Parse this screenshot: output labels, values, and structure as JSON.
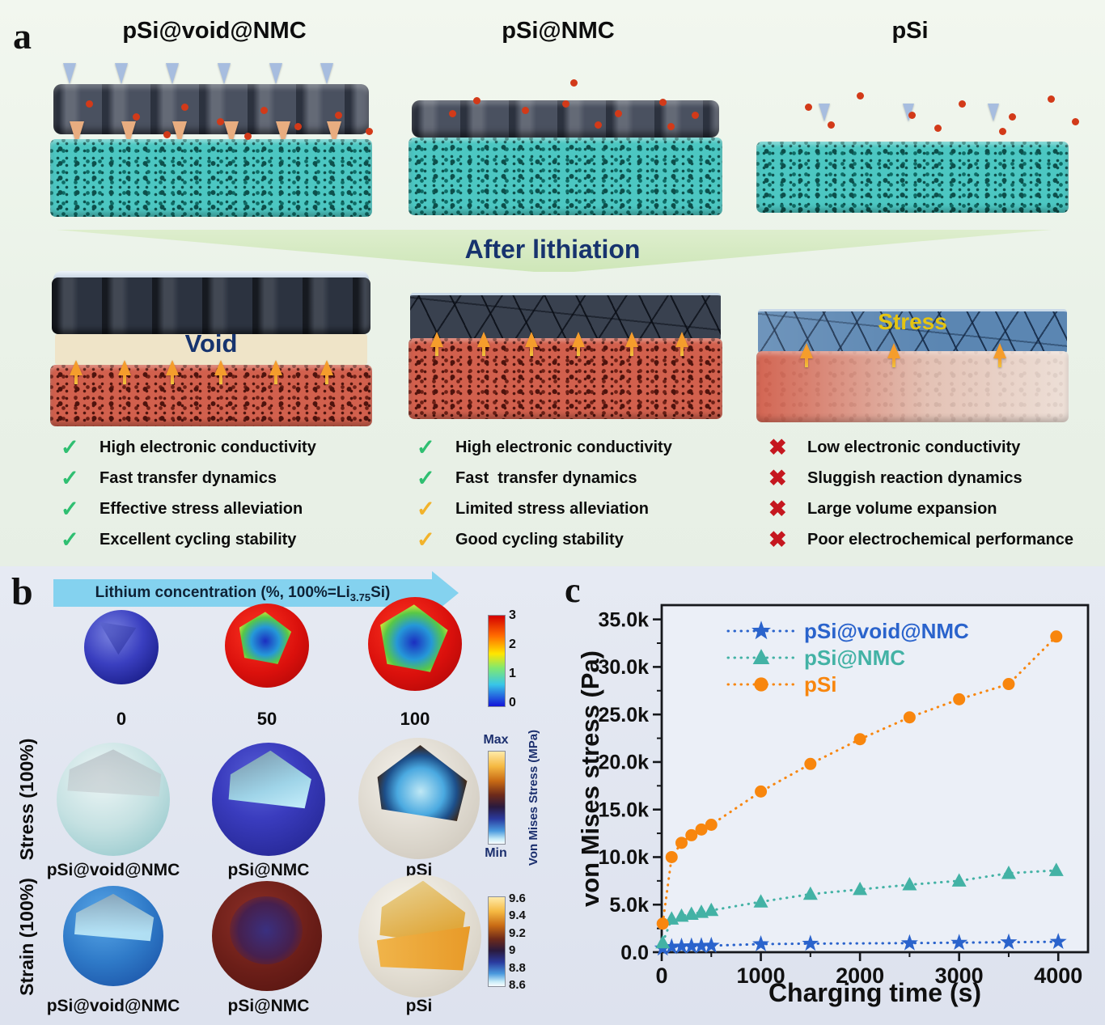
{
  "panel_a": {
    "letter": "a",
    "banner": "After lithiation",
    "void_label": "Void",
    "stress_label": "Stress",
    "icon_glyphs": {
      "check": "✓",
      "check-slash": "✓",
      "cross": "✖"
    },
    "icon_colors": {
      "check": "#2fbf71",
      "check-slash": "#f2b32b",
      "cross": "#c5171f"
    },
    "columns": [
      {
        "title": "pSi@void@NMC",
        "checks": [
          {
            "icon": "check",
            "text": "High electronic conductivity"
          },
          {
            "icon": "check",
            "text": "Fast transfer dynamics"
          },
          {
            "icon": "check",
            "text": "Effective stress alleviation"
          },
          {
            "icon": "check",
            "text": "Excellent cycling stability"
          }
        ]
      },
      {
        "title": "pSi@NMC",
        "checks": [
          {
            "icon": "check",
            "text": "High electronic conductivity"
          },
          {
            "icon": "check",
            "text": "Fast  transfer dynamics"
          },
          {
            "icon": "check-slash",
            "text": "Limited stress alleviation"
          },
          {
            "icon": "check-slash",
            "text": "Good cycling stability"
          }
        ]
      },
      {
        "title": "pSi",
        "checks": [
          {
            "icon": "cross",
            "text": "Low electronic conductivity"
          },
          {
            "icon": "cross",
            "text": "Sluggish reaction dynamics"
          },
          {
            "icon": "cross",
            "text": "Large volume expansion"
          },
          {
            "icon": "cross",
            "text": "Poor electrochemical performance"
          }
        ]
      }
    ]
  },
  "panel_b": {
    "letter": "b",
    "arrow_label": {
      "pre": "Lithium concentration (%, 100%=Li",
      "sub": "3.75",
      "post": "Si)"
    },
    "row1_tick_labels": [
      "0",
      "50",
      "100"
    ],
    "row_labels": [
      "Stress (100%)",
      "Strain (100%)"
    ],
    "material_labels": [
      "pSi@void@NMC",
      "pSi@NMC",
      "pSi"
    ],
    "colorbars": [
      {
        "ticks": [
          "3",
          "2",
          "1",
          "0"
        ]
      },
      {
        "top": "Max",
        "bottom": "Min",
        "axis_label": "Von Mises Stress (MPa)"
      },
      {
        "ticks": [
          "9.6",
          "9.4",
          "9.2",
          "9",
          "8.8",
          "8.6"
        ]
      }
    ]
  },
  "panel_c": {
    "letter": "c"
  },
  "chart_data": {
    "type": "scatter",
    "title": "",
    "xlabel": "Charging time (s)",
    "ylabel": "von Mises stress (Pa)",
    "xlim": [
      0,
      4300
    ],
    "ylim": [
      0,
      36500
    ],
    "xticks": [
      0,
      1000,
      2000,
      3000,
      4000
    ],
    "yticks": [
      0,
      5000,
      10000,
      15000,
      20000,
      25000,
      30000,
      35000
    ],
    "ytick_labels": [
      "0.0",
      "5.0k",
      "10.0k",
      "15.0k",
      "20.0k",
      "25.0k",
      "30.0k",
      "35.0k"
    ],
    "grid": false,
    "legend_position": "top-left",
    "series": [
      {
        "name": "pSi@void@NMC",
        "color": "#2a63cc",
        "marker": "star",
        "linestyle": "dotted",
        "x": [
          10,
          100,
          200,
          300,
          400,
          500,
          1000,
          1500,
          2500,
          3000,
          3500,
          4000
        ],
        "y": [
          400,
          550,
          600,
          630,
          660,
          690,
          850,
          900,
          950,
          1000,
          1050,
          1100
        ]
      },
      {
        "name": "pSi@NMC",
        "color": "#43b2a5",
        "marker": "triangle",
        "linestyle": "dotted",
        "x": [
          10,
          100,
          200,
          300,
          400,
          500,
          1000,
          1500,
          2000,
          2500,
          3000,
          3500,
          3980
        ],
        "y": [
          1000,
          3500,
          3800,
          4000,
          4200,
          4400,
          5300,
          6100,
          6600,
          7100,
          7500,
          8300,
          8600
        ]
      },
      {
        "name": "pSi",
        "color": "#f8860e",
        "marker": "circle",
        "linestyle": "dotted",
        "x": [
          10,
          100,
          200,
          300,
          400,
          500,
          1000,
          1500,
          2000,
          2500,
          3000,
          3500,
          3980
        ],
        "y": [
          3000,
          10000,
          11500,
          12300,
          12900,
          13400,
          16900,
          19800,
          22400,
          24700,
          26600,
          28200,
          33200
        ]
      }
    ]
  }
}
